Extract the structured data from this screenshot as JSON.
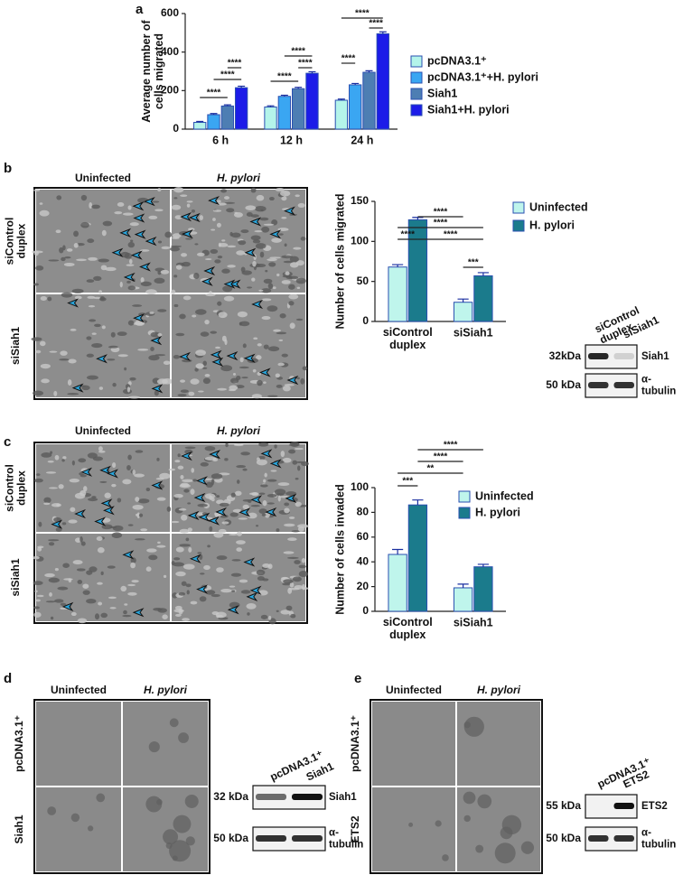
{
  "panel_labels": [
    "a",
    "b",
    "c",
    "d",
    "e"
  ],
  "chart_data": [
    {
      "type": "bar",
      "y_label": "Average number of cells migrated",
      "categories": [
        "6 h",
        "12 h",
        "24 h"
      ],
      "series": [
        {
          "name": "pcDNA3.1⁺",
          "color": "#b4f4ea",
          "values": [
            35,
            115,
            150
          ],
          "errors": [
            5,
            6,
            6
          ]
        },
        {
          "name": "pcDNA3.1⁺+H. pylori",
          "color": "#3aa6f2",
          "values": [
            75,
            170,
            230
          ],
          "errors": [
            6,
            6,
            7
          ]
        },
        {
          "name": "Siah1",
          "color": "#4d7eb3",
          "values": [
            120,
            210,
            295
          ],
          "errors": [
            6,
            7,
            8
          ]
        },
        {
          "name": "Siah1+H. pylori",
          "color": "#1c1ce8",
          "values": [
            215,
            290,
            495
          ],
          "errors": [
            8,
            8,
            10
          ]
        }
      ],
      "ylim": [
        0,
        600
      ],
      "yticks": [
        0,
        200,
        400,
        600
      ],
      "significance": [
        "****",
        "****",
        "****",
        "****",
        "****",
        "****",
        "****",
        "****",
        "****"
      ]
    },
    {
      "type": "bar",
      "y_label": "Number of cells migrated",
      "categories": [
        "siControl duplex",
        "siSiah1"
      ],
      "series": [
        {
          "name": "Uninfected",
          "color": "#bff5ec",
          "values": [
            68,
            24
          ],
          "errors": [
            3,
            4
          ]
        },
        {
          "name": "H. pylori",
          "color": "#1b7b8c",
          "values": [
            127,
            57
          ],
          "errors": [
            3,
            4
          ]
        }
      ],
      "ylim": [
        0,
        150
      ],
      "yticks": [
        0,
        50,
        100,
        150
      ],
      "significance": [
        "****",
        "****",
        "****",
        "****",
        "***"
      ]
    },
    {
      "type": "bar",
      "y_label": "Number of cells invaded",
      "categories": [
        "siControl duplex",
        "siSiah1"
      ],
      "series": [
        {
          "name": "Uninfected",
          "color": "#bff5ec",
          "values": [
            46,
            19
          ],
          "errors": [
            4,
            3
          ]
        },
        {
          "name": "H. pylori",
          "color": "#1b7b8c",
          "values": [
            86,
            36
          ],
          "errors": [
            4,
            2
          ]
        }
      ],
      "ylim": [
        0,
        100
      ],
      "yticks": [
        0,
        20,
        40,
        60,
        80,
        100
      ],
      "significance": [
        "****",
        "****",
        "**",
        "***"
      ]
    }
  ],
  "micrographs": [
    {
      "columns": [
        "Uninfected",
        "H. pylori"
      ],
      "rows": [
        "siControl duplex",
        "siSiah1"
      ]
    },
    {
      "columns": [
        "Uninfected",
        "H. pylori"
      ],
      "rows": [
        "siControl duplex",
        "siSiah1"
      ]
    },
    {
      "columns": [
        "Uninfected",
        "H. pylori"
      ],
      "rows": [
        "pcDNA3.1⁺",
        "Siah1"
      ]
    },
    {
      "columns": [
        "Uninfected",
        "H. pylori"
      ],
      "rows": [
        "pcDNA3.1⁺",
        "ETS2"
      ]
    }
  ],
  "blots": [
    {
      "lanes": [
        "siControl duplex",
        "siSiah1"
      ],
      "bands": [
        {
          "size": "32kDa",
          "protein": "Siah1"
        },
        {
          "size": "50 kDa",
          "protein": "α-tubulin"
        }
      ]
    },
    {
      "lanes": [
        "pcDNA3.1⁺",
        "Siah1"
      ],
      "bands": [
        {
          "size": "32 kDa",
          "protein": "Siah1"
        },
        {
          "size": "50 kDa",
          "protein": "α-tubulin"
        }
      ]
    },
    {
      "lanes": [
        "pcDNA3.1⁺",
        "ETS2"
      ],
      "bands": [
        {
          "size": "55 kDa",
          "protein": "ETS2"
        },
        {
          "size": "50 kDa",
          "protein": "α-tubulin"
        }
      ]
    }
  ]
}
